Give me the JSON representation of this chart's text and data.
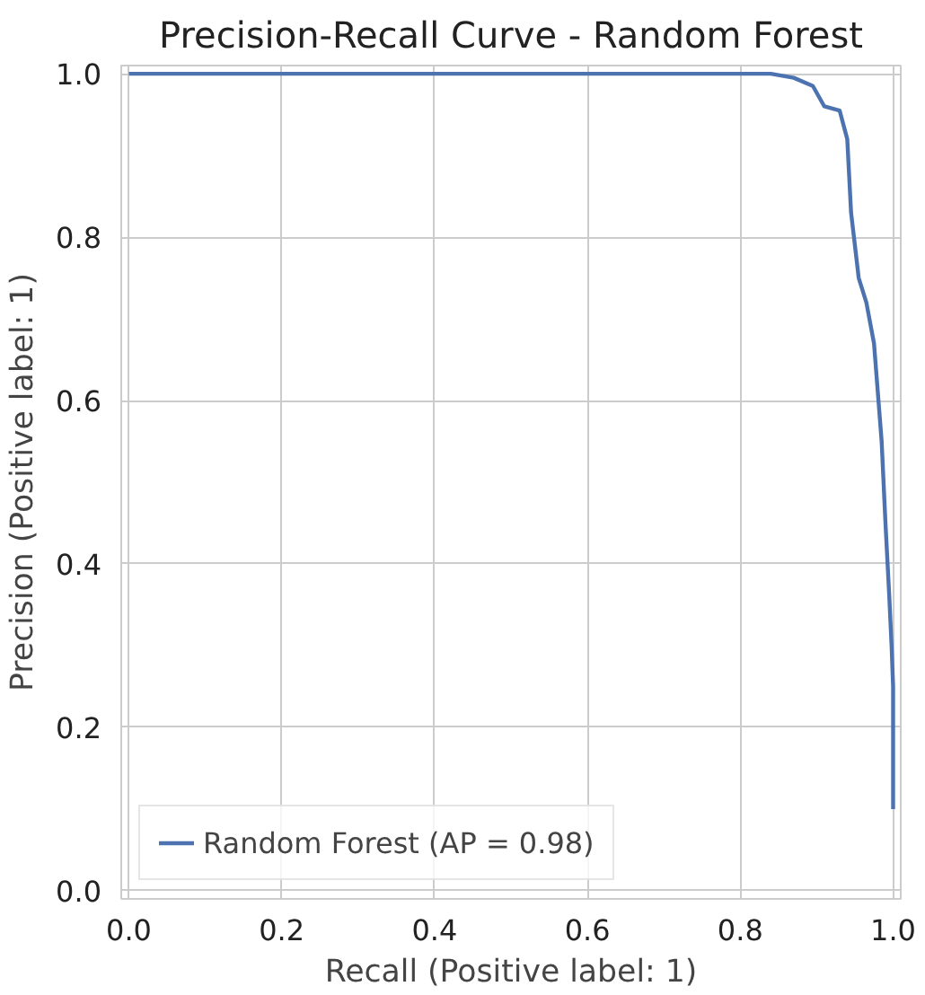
{
  "chart_data": {
    "type": "line",
    "title": "Precision-Recall Curve - Random Forest",
    "xlabel": "Recall (Positive label: 1)",
    "ylabel": "Precision (Positive label: 1)",
    "xlim": [
      -0.01,
      1.01
    ],
    "ylim": [
      -0.01,
      1.01
    ],
    "xticks": [
      {
        "value": 0,
        "label": "0.0"
      },
      {
        "value": 0.2,
        "label": "0.2"
      },
      {
        "value": 0.4,
        "label": "0.4"
      },
      {
        "value": 0.6,
        "label": "0.6"
      },
      {
        "value": 0.8,
        "label": "0.8"
      },
      {
        "value": 1,
        "label": "1.0"
      }
    ],
    "yticks": [
      {
        "value": 0,
        "label": "0.0"
      },
      {
        "value": 0.2,
        "label": "0.2"
      },
      {
        "value": 0.4,
        "label": "0.4"
      },
      {
        "value": 0.6,
        "label": "0.6"
      },
      {
        "value": 0.8,
        "label": "0.8"
      },
      {
        "value": 1,
        "label": "1.0"
      }
    ],
    "grid": true,
    "legend": "bottom left",
    "line_style": "solid",
    "series": [
      {
        "name": "Random Forest (AP = 0.98)",
        "color": "#4c72b0",
        "x": [
          0,
          0.84,
          0.87,
          0.895,
          0.91,
          0.93,
          0.94,
          0.945,
          0.955,
          0.965,
          0.975,
          0.98,
          0.985,
          0.99,
          0.995,
          0.998,
          1.0,
          1.0
        ],
        "values": [
          1,
          1,
          0.995,
          0.985,
          0.96,
          0.955,
          0.92,
          0.83,
          0.75,
          0.72,
          0.67,
          0.61,
          0.55,
          0.45,
          0.36,
          0.3,
          0.25,
          0.1
        ]
      }
    ]
  }
}
